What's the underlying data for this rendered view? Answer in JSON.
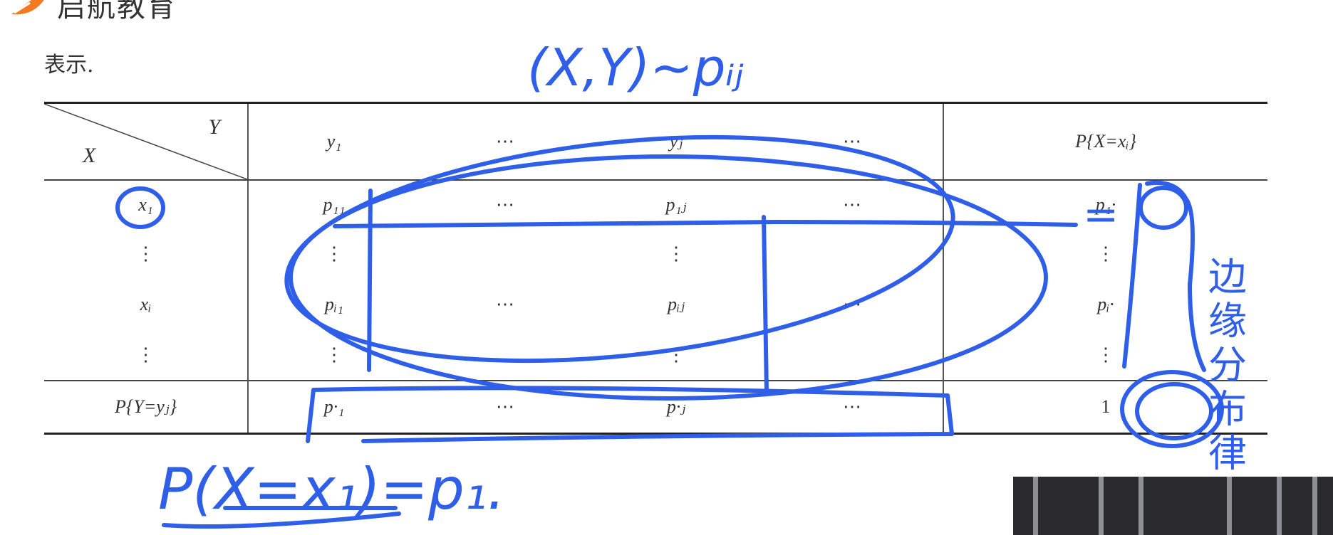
{
  "brand": {
    "name": "启航教育",
    "accent": "#F47A20"
  },
  "intro_text": "表示.",
  "table": {
    "header": {
      "corner_y": "Y",
      "corner_x": "X",
      "cols": [
        "y₁",
        "⋯",
        "yⱼ",
        "⋯",
        "P{X=xᵢ}"
      ]
    },
    "rows": [
      {
        "label": "x₁",
        "cells": [
          "p₁₁",
          "⋯",
          "p₁ⱼ",
          "⋯",
          "p₁·"
        ]
      },
      {
        "label": "⋮",
        "cells": [
          "⋮",
          "",
          "⋮",
          "",
          "⋮"
        ]
      },
      {
        "label": "xᵢ",
        "cells": [
          "pᵢ₁",
          "⋯",
          "pᵢⱼ",
          "⋯",
          "pᵢ·"
        ]
      },
      {
        "label": "⋮",
        "cells": [
          "⋮",
          "",
          "⋮",
          "",
          "⋮"
        ]
      }
    ],
    "footer": {
      "label": "P{Y=yⱼ}",
      "cells": [
        "p·₁",
        "⋯",
        "p·ⱼ",
        "⋯",
        "1"
      ]
    }
  },
  "annotations": {
    "ink_color": "#2F5FE8",
    "top_note": "(X,Y)~pᵢⱼ",
    "right_note": "边缘分布律",
    "equals_sign": "=",
    "bottom_note": "P(X=x₁)=p₁."
  },
  "video_thumbnail": {
    "description_icon": "webcam-video-icon"
  }
}
